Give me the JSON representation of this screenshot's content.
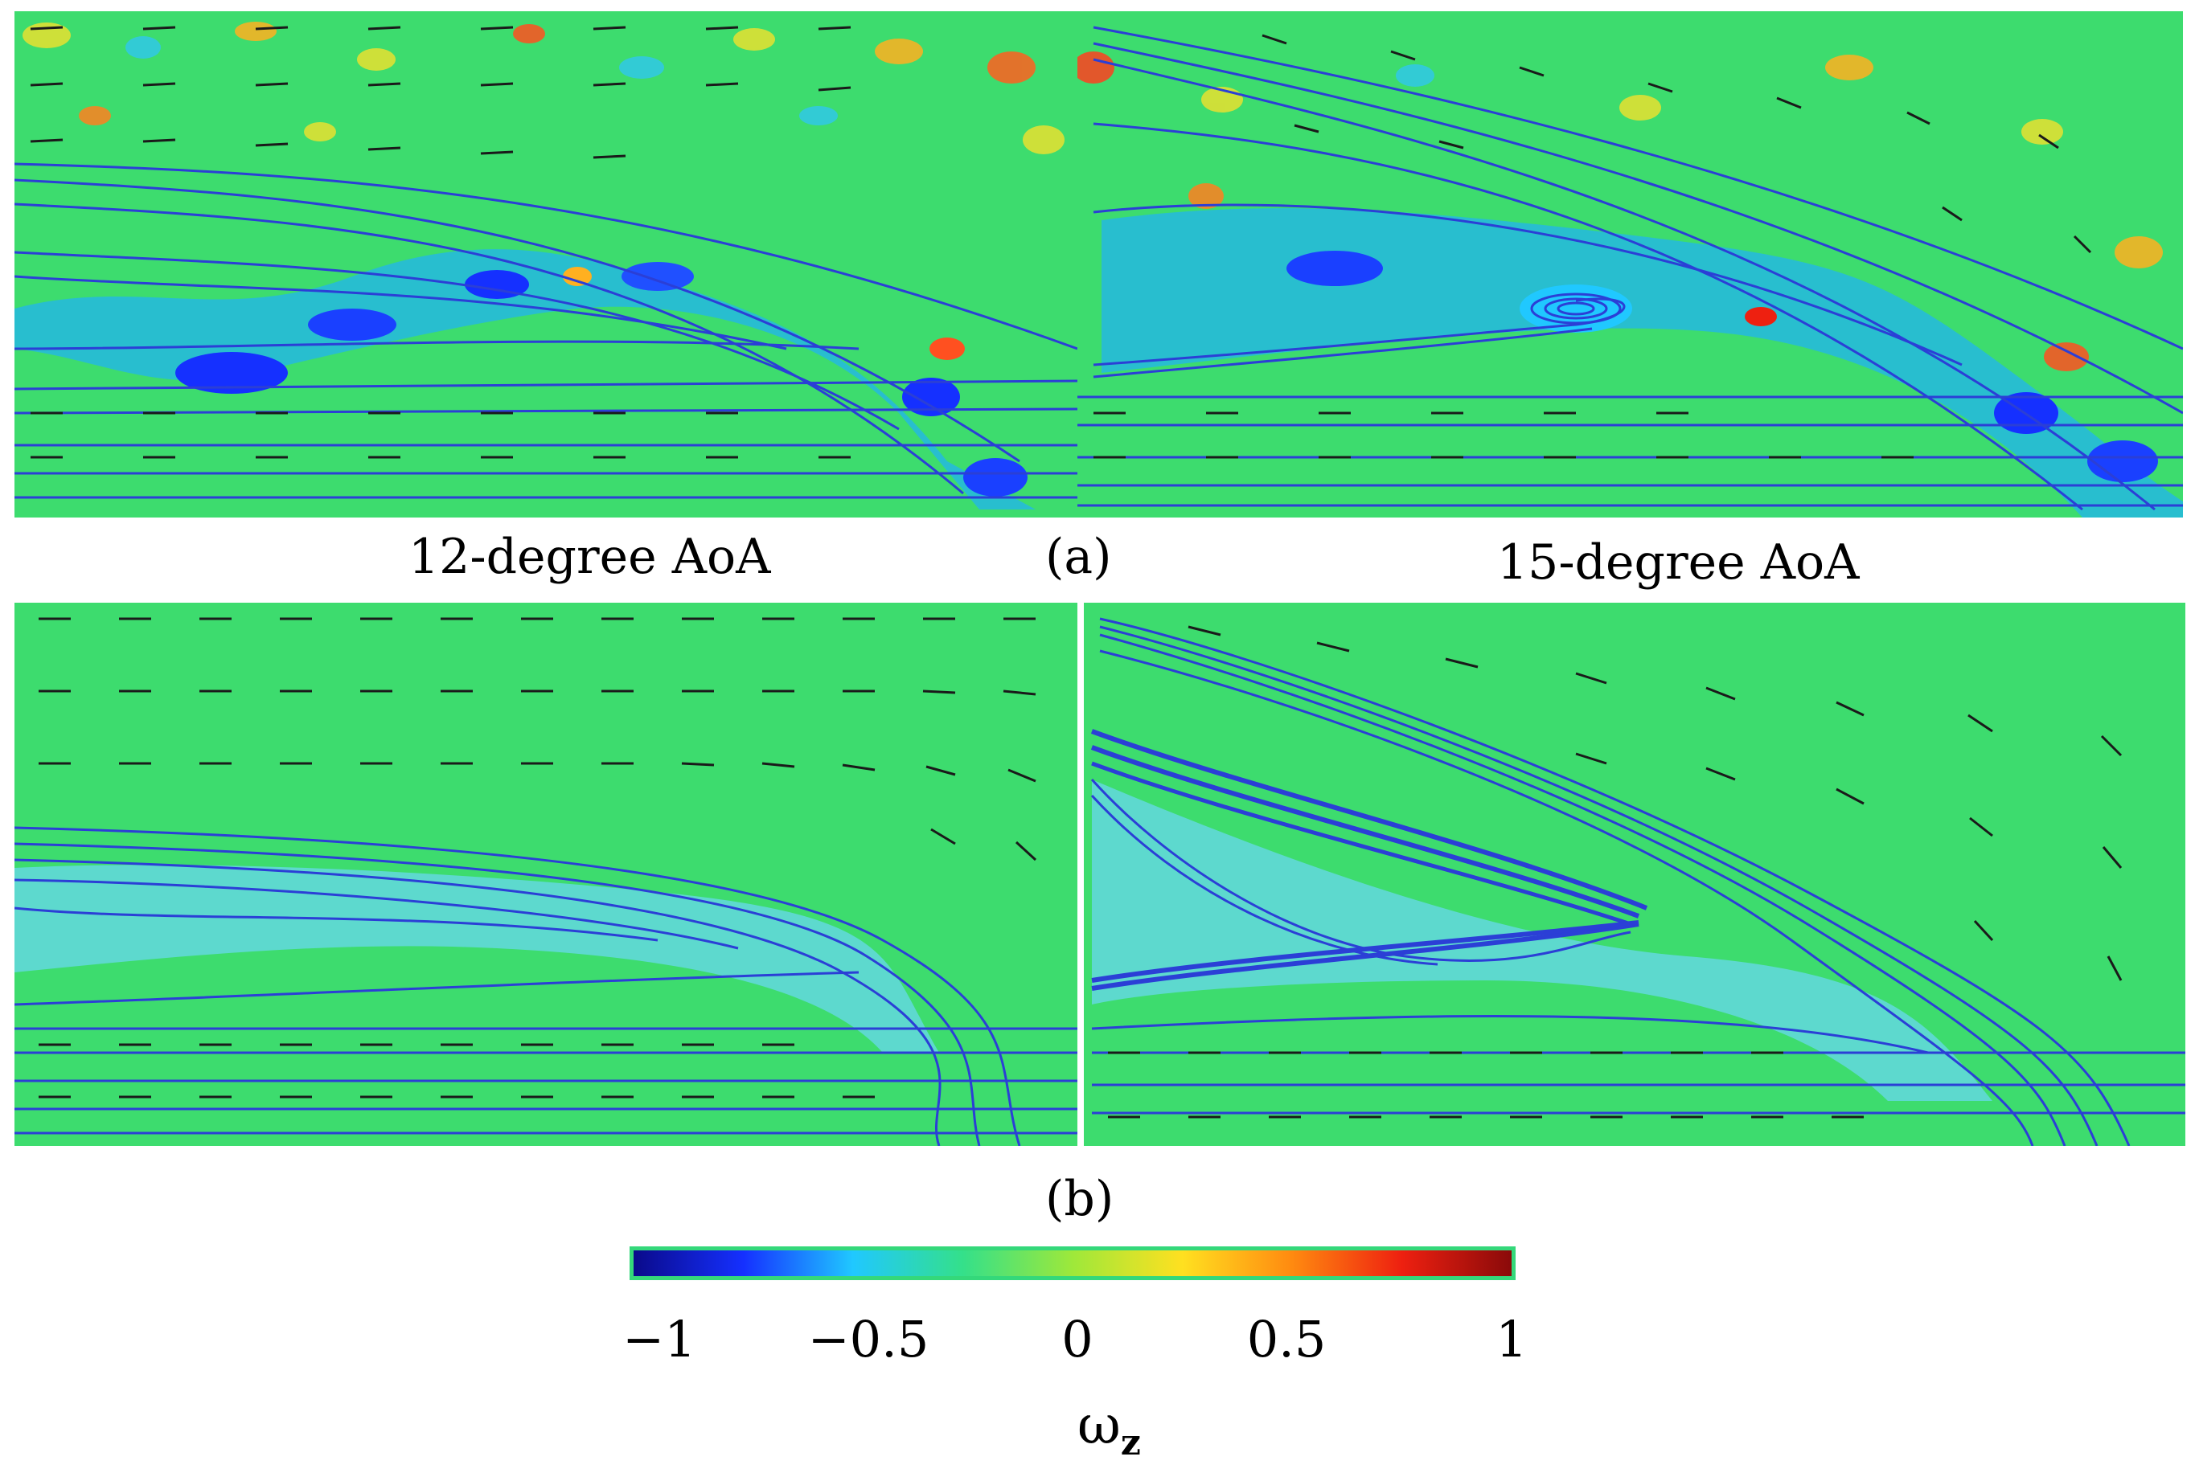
{
  "figure": {
    "panels": {
      "a_left": {
        "aoa_label": "12-degree AoA",
        "flow": "experimental",
        "colormap": "vorticity"
      },
      "a_right": {
        "aoa_label": "15-degree AoA",
        "flow": "experimental",
        "colormap": "vorticity"
      },
      "b_left": {
        "flow": "simulation",
        "colormap": "vorticity"
      },
      "b_right": {
        "flow": "simulation",
        "colormap": "vorticity"
      }
    },
    "row_labels": {
      "a": "(a)",
      "b": "(b)"
    },
    "colorbar": {
      "ticks": [
        "−1",
        "−0.5",
        "0",
        "0.5",
        "1"
      ],
      "symbol": "ω",
      "subscript": "z",
      "colors": [
        "#0a0a8a",
        "#1530ff",
        "#20c8ff",
        "#34e08a",
        "#9ee83a",
        "#ffe020",
        "#ff8a10",
        "#ee2010",
        "#8a0a0a"
      ]
    },
    "colors": {
      "field_background": "#3ddc6e",
      "streamline": "#2b3fd6",
      "vector_arrow": "#1a1a1a"
    }
  }
}
